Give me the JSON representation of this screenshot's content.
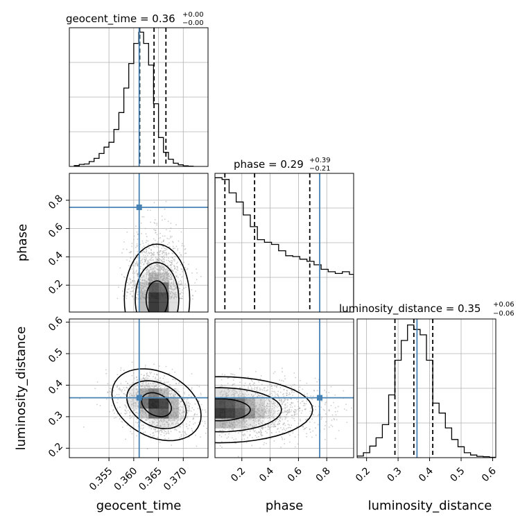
{
  "chart_data": {
    "type": "corner",
    "params": [
      "geocent_time",
      "phase",
      "luminosity_distance"
    ],
    "axis_labels": [
      "geocent_time",
      "phase",
      "luminosity_distance"
    ],
    "truths": [
      0.3611,
      0.75,
      0.36
    ],
    "truth_color": "#4682b4",
    "ranges": [
      [
        0.347,
        0.375
      ],
      [
        0.01,
        0.99
      ],
      [
        0.17,
        0.61
      ]
    ],
    "ticks": [
      {
        "values": [
          0.355,
          0.36,
          0.365,
          0.37
        ],
        "labels": [
          "0.355",
          "0.360",
          "0.365",
          "0.370"
        ]
      },
      {
        "values": [
          0.2,
          0.4,
          0.6,
          0.8
        ],
        "labels": [
          "0.2",
          "0.4",
          "0.6",
          "0.8"
        ]
      },
      {
        "values": [
          0.2,
          0.3,
          0.4,
          0.5,
          0.6
        ],
        "labels": [
          "0.2",
          "0.3",
          "0.4",
          "0.5",
          "0.6"
        ]
      }
    ],
    "titles": [
      {
        "text": "geocent_time = 0.36",
        "sup": "+0.00",
        "sub": "−0.00"
      },
      {
        "text": "phase = 0.29",
        "sup": "+0.39",
        "sub": "−0.21"
      },
      {
        "text": "luminosity_distance = 0.35",
        "sup": "+0.06",
        "sub": "−0.06"
      }
    ],
    "quantiles": [
      [
        0.3612,
        0.3641,
        0.3665
      ],
      [
        0.08,
        0.29,
        0.68
      ],
      [
        0.29,
        0.35,
        0.41
      ]
    ],
    "histograms": [
      {
        "edges": [
          0.348,
          0.349,
          0.35,
          0.351,
          0.352,
          0.353,
          0.354,
          0.355,
          0.356,
          0.357,
          0.358,
          0.359,
          0.36,
          0.361,
          0.362,
          0.363,
          0.364,
          0.365,
          0.366,
          0.367,
          0.368,
          0.369,
          0.37,
          0.371,
          0.372
        ],
        "counts": [
          0.2,
          0.5,
          0.6,
          1.2,
          2.0,
          3.2,
          4.8,
          6.0,
          9.2,
          13.4,
          19.5,
          25.6,
          30.6,
          33.4,
          30.6,
          25.2,
          15.6,
          7.2,
          3.5,
          1.8,
          0.8,
          0.4,
          0.15,
          0.05
        ],
        "ylim": [
          0,
          34.5
        ]
      },
      {
        "edges": [
          0.01,
          0.06,
          0.11,
          0.16,
          0.21,
          0.26,
          0.31,
          0.36,
          0.41,
          0.46,
          0.51,
          0.56,
          0.61,
          0.66,
          0.71,
          0.76,
          0.81,
          0.86,
          0.91,
          0.96,
          0.99
        ],
        "counts": [
          62.0,
          61.2,
          55.0,
          50.8,
          44.8,
          39.4,
          33.4,
          32.2,
          31.2,
          28.3,
          26.0,
          25.6,
          24.4,
          23.4,
          21.8,
          19.7,
          18.6,
          17.8,
          18.6,
          17.4
        ],
        "ylim": [
          0,
          64
        ]
      },
      {
        "edges": [
          0.17,
          0.19,
          0.21,
          0.23,
          0.25,
          0.27,
          0.29,
          0.31,
          0.33,
          0.35,
          0.37,
          0.39,
          0.41,
          0.43,
          0.45,
          0.47,
          0.49,
          0.51,
          0.53,
          0.55,
          0.57,
          0.59,
          0.61
        ],
        "counts": [
          0.5,
          1.5,
          3.5,
          6.0,
          10.0,
          19.0,
          29.5,
          35.5,
          40.2,
          38.8,
          37.2,
          29.5,
          16.5,
          13.5,
          9.0,
          5.5,
          3.3,
          1.5,
          0.8,
          0.4,
          0.3,
          0.1
        ],
        "ylim": [
          0,
          42
        ]
      }
    ],
    "density_peaks": [
      {
        "xi": 0,
        "yi": 1,
        "cx": 0.3647,
        "cy": 0.1,
        "sx": 0.0022,
        "sy": 0.13,
        "rho": 0.0
      },
      {
        "xi": 0,
        "yi": 2,
        "cx": 0.3646,
        "cy": 0.338,
        "sx": 0.003,
        "sy": 0.038,
        "rho": -0.3
      },
      {
        "xi": 1,
        "yi": 2,
        "cx": 0.04,
        "cy": 0.322,
        "sx": 0.22,
        "sy": 0.035,
        "rho": 0.0
      }
    ]
  }
}
